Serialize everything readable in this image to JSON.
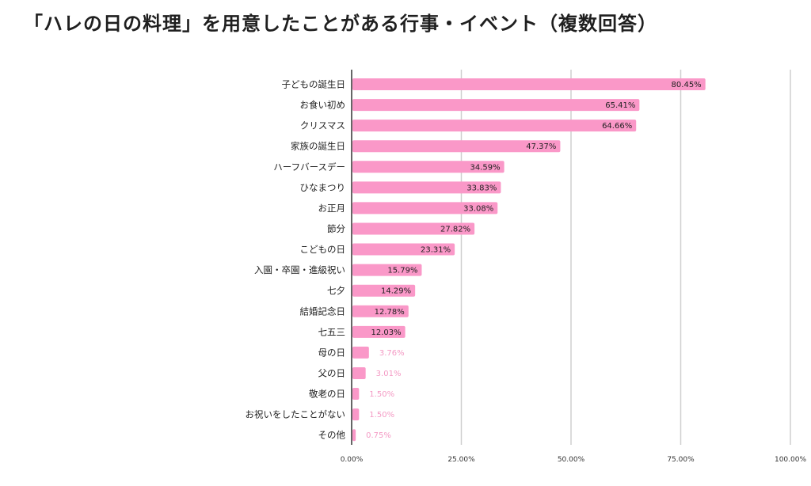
{
  "chart_data": {
    "type": "bar",
    "orientation": "horizontal",
    "title": "「ハレの日の料理」を用意したことがある行事・イベント（複数回答）",
    "categories": [
      "子どもの誕生日",
      "お食い初め",
      "クリスマス",
      "家族の誕生日",
      "ハーフバースデー",
      "ひなまつり",
      "お正月",
      "節分",
      "こどもの日",
      "入園・卒園・進級祝い",
      "七夕",
      "結婚記念日",
      "七五三",
      "母の日",
      "父の日",
      "敬老の日",
      "お祝いをしたことがない",
      "その他"
    ],
    "values": [
      80.45,
      65.41,
      64.66,
      47.37,
      34.59,
      33.83,
      33.08,
      27.82,
      23.31,
      15.79,
      14.29,
      12.78,
      12.03,
      3.76,
      3.01,
      1.5,
      1.5,
      0.75
    ],
    "value_labels": [
      "80.45%",
      "65.41%",
      "64.66%",
      "47.37%",
      "34.59%",
      "33.83%",
      "33.08%",
      "27.82%",
      "23.31%",
      "15.79%",
      "14.29%",
      "12.78%",
      "12.03%",
      "3.76%",
      "3.01%",
      "1.50%",
      "1.50%",
      "0.75%"
    ],
    "xlim": [
      0,
      100
    ],
    "xticks": [
      0,
      25,
      50,
      75,
      100
    ],
    "xtick_labels": [
      "0.00%",
      "25.00%",
      "50.00%",
      "75.00%",
      "100.00%"
    ],
    "grid": true,
    "colors": {
      "bar": "#fa98c8",
      "label_inside": "#222222",
      "label_outside": "#f49ac4",
      "grid": "#cfcfcf",
      "axis": "#333333"
    }
  }
}
